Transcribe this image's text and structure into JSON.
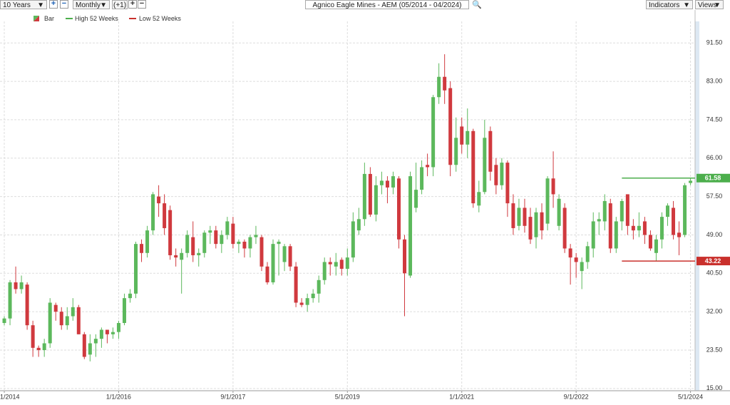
{
  "toolbar": {
    "range": "10 Years",
    "interval": "Monthly",
    "offset": "(+1)",
    "indicators": "Indicators",
    "views": "Views"
  },
  "chart_data": {
    "type": "candlestick",
    "title": "Agnico Eagle Mines - AEM (05/2014 - 04/2024)",
    "xlim": [
      -0.75,
      120.8
    ],
    "xticks": [
      {
        "value": 0,
        "label": "1/2014"
      },
      {
        "value": 20,
        "label": "1/1/2016"
      },
      {
        "value": 40,
        "label": "9/1/2017"
      },
      {
        "value": 60,
        "label": "5/1/2019"
      },
      {
        "value": 80,
        "label": "1/1/2021"
      },
      {
        "value": 100,
        "label": "9/1/2022"
      },
      {
        "value": 120,
        "label": "5/1/2024"
      }
    ],
    "ylim": [
      14.5,
      98.8
    ],
    "yticks": [
      {
        "value": 15,
        "label": "15.00"
      },
      {
        "value": 23.5,
        "label": "23.50"
      },
      {
        "value": 32,
        "label": "32.00"
      },
      {
        "value": 40.5,
        "label": "40.50"
      },
      {
        "value": 49,
        "label": "49.00"
      },
      {
        "value": 57.5,
        "label": "57.50"
      },
      {
        "value": 66,
        "label": "66.00"
      },
      {
        "value": 74.5,
        "label": "74.50"
      },
      {
        "value": 83,
        "label": "83.00"
      },
      {
        "value": 91.5,
        "label": "91.50"
      }
    ],
    "grid": true,
    "series": [
      {
        "name": "Bar",
        "up_color": "#5cb85c",
        "down_color": "#d0393e",
        "open": [
          29.5,
          30.5,
          38.5,
          37,
          38,
          29,
          24,
          23.5,
          25,
          33.5,
          32,
          29,
          31,
          33,
          27,
          22.5,
          25,
          26,
          28,
          27,
          27.5,
          29.5,
          35,
          36,
          47,
          45,
          50,
          57.5,
          56,
          54.5,
          44.5,
          43.5,
          45,
          48.5,
          44.5,
          45,
          49.5,
          50,
          47,
          49,
          51.5,
          47,
          47.5,
          46,
          48.5,
          48.5,
          42,
          38.5,
          47,
          43,
          46.5,
          42,
          34,
          33.5,
          35,
          36,
          39,
          43,
          42,
          43.5,
          41.5,
          44,
          50,
          52.5,
          62.5,
          53.5,
          60,
          61,
          59.5,
          61.5,
          48,
          40,
          55,
          59,
          64.5,
          64,
          79.5,
          84,
          81.5,
          64.5,
          73,
          69,
          72,
          55.5,
          58.5,
          72,
          64.5,
          60,
          65,
          56,
          51,
          55,
          53,
          48.5,
          54,
          51.5,
          61.5,
          51,
          55,
          46,
          44,
          41,
          43,
          46,
          52,
          52,
          56,
          46,
          52,
          58,
          51,
          50,
          52,
          49,
          45,
          48,
          53,
          55,
          49.5,
          49,
          60.5
        ],
        "high": [
          31,
          39,
          42,
          40,
          38.5,
          30,
          24.5,
          26,
          35,
          34,
          33,
          33,
          35,
          33.5,
          27.5,
          27,
          27,
          28.5,
          28,
          28.5,
          30,
          36,
          37,
          47.5,
          48,
          51,
          58.5,
          60,
          58,
          55.5,
          46,
          46,
          50,
          52,
          46,
          50,
          51,
          51,
          50,
          53,
          53,
          48,
          48,
          49,
          51,
          49,
          43,
          48,
          48,
          47,
          47,
          43,
          35,
          36,
          37,
          40,
          44,
          44,
          45,
          44,
          46,
          54,
          55,
          65,
          64,
          62,
          63,
          62,
          63,
          62,
          49,
          63,
          65,
          65.5,
          67,
          80,
          87,
          89,
          83,
          75,
          75,
          77,
          72.5,
          61,
          74.5,
          73,
          66,
          66,
          65.5,
          58,
          57,
          57,
          55,
          55,
          56,
          62,
          67.5,
          58,
          56,
          47,
          45,
          44,
          47.5,
          54,
          54,
          58,
          57,
          53,
          57,
          58,
          52.5,
          54,
          53,
          50,
          49,
          54,
          56,
          56.5,
          52,
          60.5,
          61.58
        ],
        "low": [
          29,
          29,
          36,
          36,
          28,
          22,
          22,
          22,
          24,
          30,
          28,
          28,
          30,
          27,
          21.5,
          21,
          22,
          24,
          25,
          26,
          26,
          29,
          34,
          35,
          43,
          44,
          49,
          53,
          49,
          43.5,
          42,
          36,
          44,
          43,
          42,
          44,
          47,
          46,
          45,
          48,
          46,
          45,
          44,
          44,
          47,
          41,
          38,
          38,
          40,
          41,
          41,
          33,
          33,
          32,
          34,
          34,
          38,
          40,
          40,
          40,
          40,
          43,
          49,
          51,
          53,
          52,
          58,
          56,
          58,
          46,
          31,
          39.5,
          54,
          58,
          62,
          62,
          78,
          78,
          62,
          63,
          67,
          66,
          55,
          54,
          58,
          61,
          58,
          59,
          53,
          49,
          50,
          49.5,
          47,
          46,
          48,
          50,
          55,
          50,
          45,
          38,
          39.5,
          37,
          41.5,
          44,
          49,
          50,
          45,
          45,
          50,
          49,
          48,
          48.5,
          47,
          45.5,
          43.22,
          46,
          51,
          48,
          44.5,
          48.5,
          60
        ],
        "close": [
          30.5,
          38.5,
          37,
          38.5,
          29,
          24,
          23.5,
          25,
          34,
          32,
          29,
          31,
          33,
          27,
          22,
          25,
          26,
          28,
          27,
          27.5,
          29.5,
          35,
          36,
          47,
          45,
          50,
          58,
          56,
          50.5,
          44.5,
          44,
          45,
          49,
          44.5,
          45,
          49.5,
          50,
          47,
          49,
          52,
          47,
          47.5,
          46,
          48.5,
          49,
          42,
          38.5,
          47,
          47.5,
          46.5,
          42,
          34,
          33.5,
          35,
          36,
          39,
          43,
          42.5,
          43,
          41.5,
          44,
          52,
          52.5,
          62.5,
          53.5,
          60,
          61,
          59.5,
          62,
          48,
          40.5,
          62,
          59,
          64,
          64,
          79.5,
          84,
          81,
          64.5,
          70.5,
          69,
          72,
          56,
          58.5,
          70.5,
          63,
          60,
          65,
          56,
          50.5,
          55,
          51,
          48,
          54,
          50,
          61.5,
          58,
          57,
          46,
          44,
          43,
          43,
          46.5,
          52,
          52.5,
          56.5,
          46,
          52,
          56.5,
          51,
          50,
          51,
          49,
          46,
          48,
          53,
          55.5,
          49,
          48.5,
          60,
          61
        ]
      },
      {
        "name": "High 52 Weeks",
        "color": "#4cae4c",
        "value": 61.58
      },
      {
        "name": "Low 52 Weeks",
        "color": "#c9302c",
        "value": 43.22
      }
    ]
  }
}
